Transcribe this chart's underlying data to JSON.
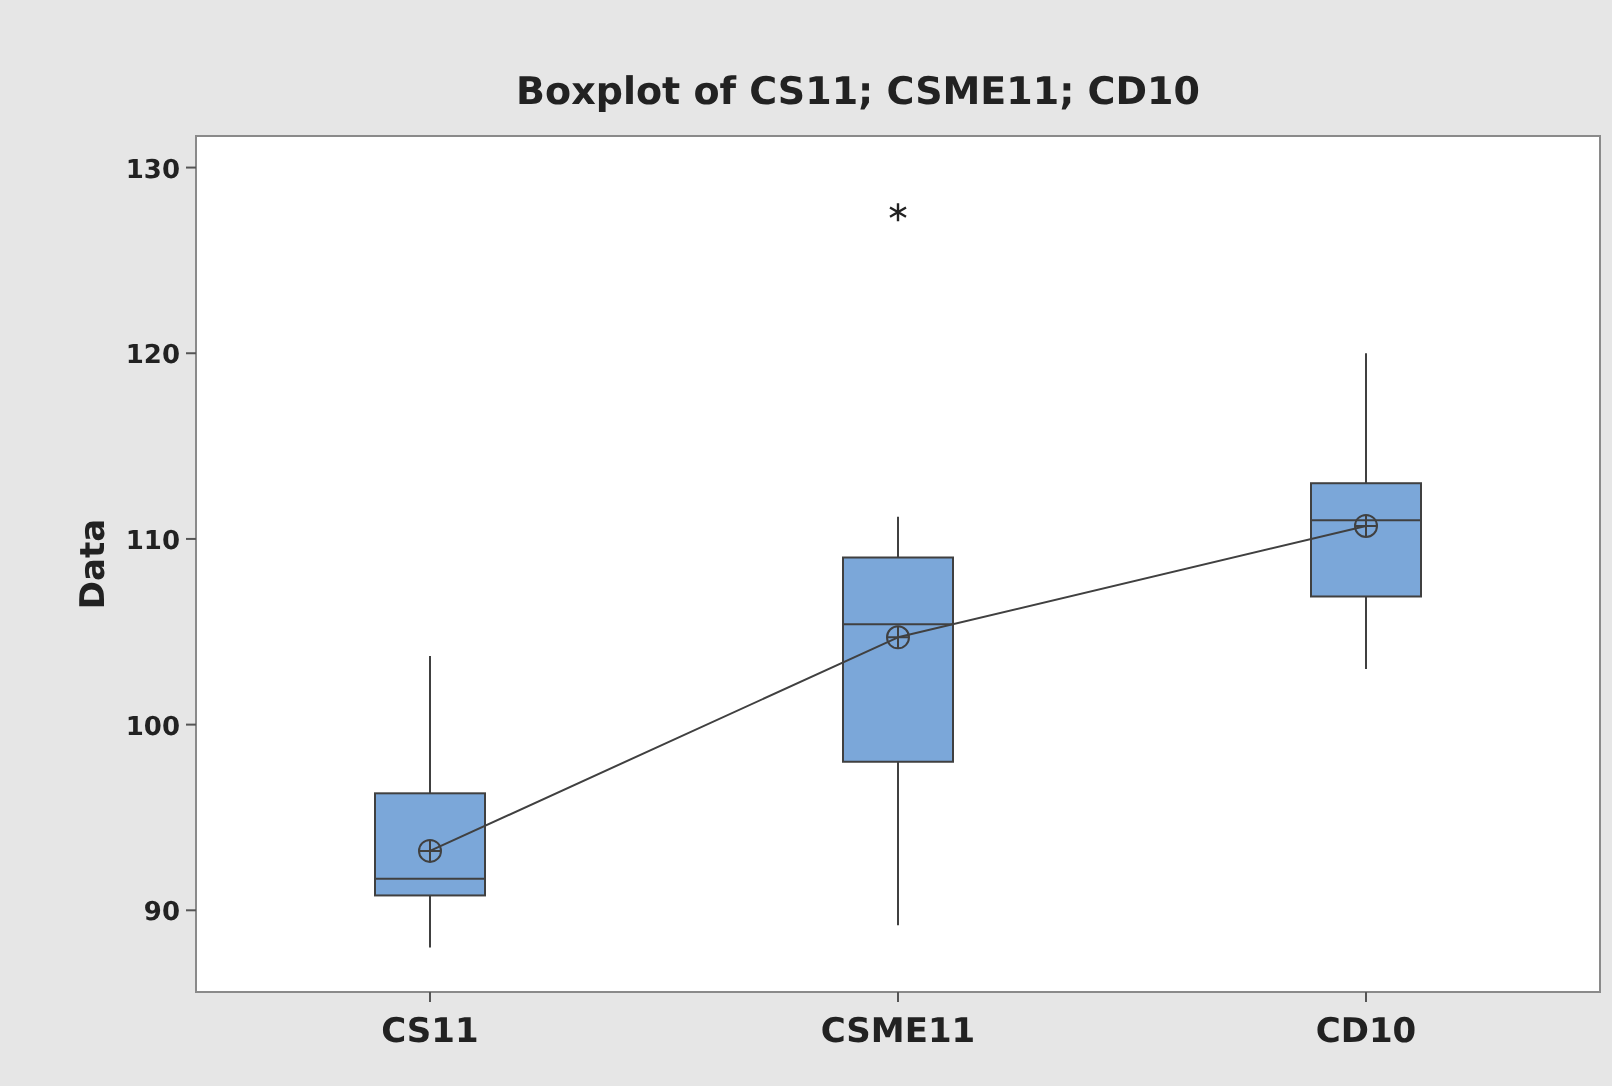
{
  "chart_data": {
    "type": "box",
    "title": "Boxplot of CS11; CSME11; CD10",
    "ylabel": "Data",
    "categories": [
      "CS11",
      "CSME11",
      "CD10"
    ],
    "ylim": [
      85.6,
      131.7
    ],
    "yticks": [
      90,
      100,
      110,
      120,
      130
    ],
    "grid": false,
    "series": [
      {
        "color": "#7ba7d9",
        "boxes": [
          {
            "low": 88.0,
            "q1": 90.8,
            "median": 91.7,
            "q3": 96.3,
            "high": 103.7,
            "mean": 93.2
          },
          {
            "low": 89.2,
            "q1": 98.0,
            "median": 105.4,
            "q3": 109.0,
            "high": 111.2,
            "mean": 104.7,
            "outliers": [
              127.6
            ]
          },
          {
            "low": 103.0,
            "q1": 106.9,
            "median": 111.0,
            "q3": 113.0,
            "high": 120.0,
            "mean": 110.7
          }
        ]
      },
      {
        "type": "line",
        "color": "#404040",
        "values": [
          93.2,
          104.7,
          110.7
        ],
        "marker": "none"
      }
    ]
  }
}
